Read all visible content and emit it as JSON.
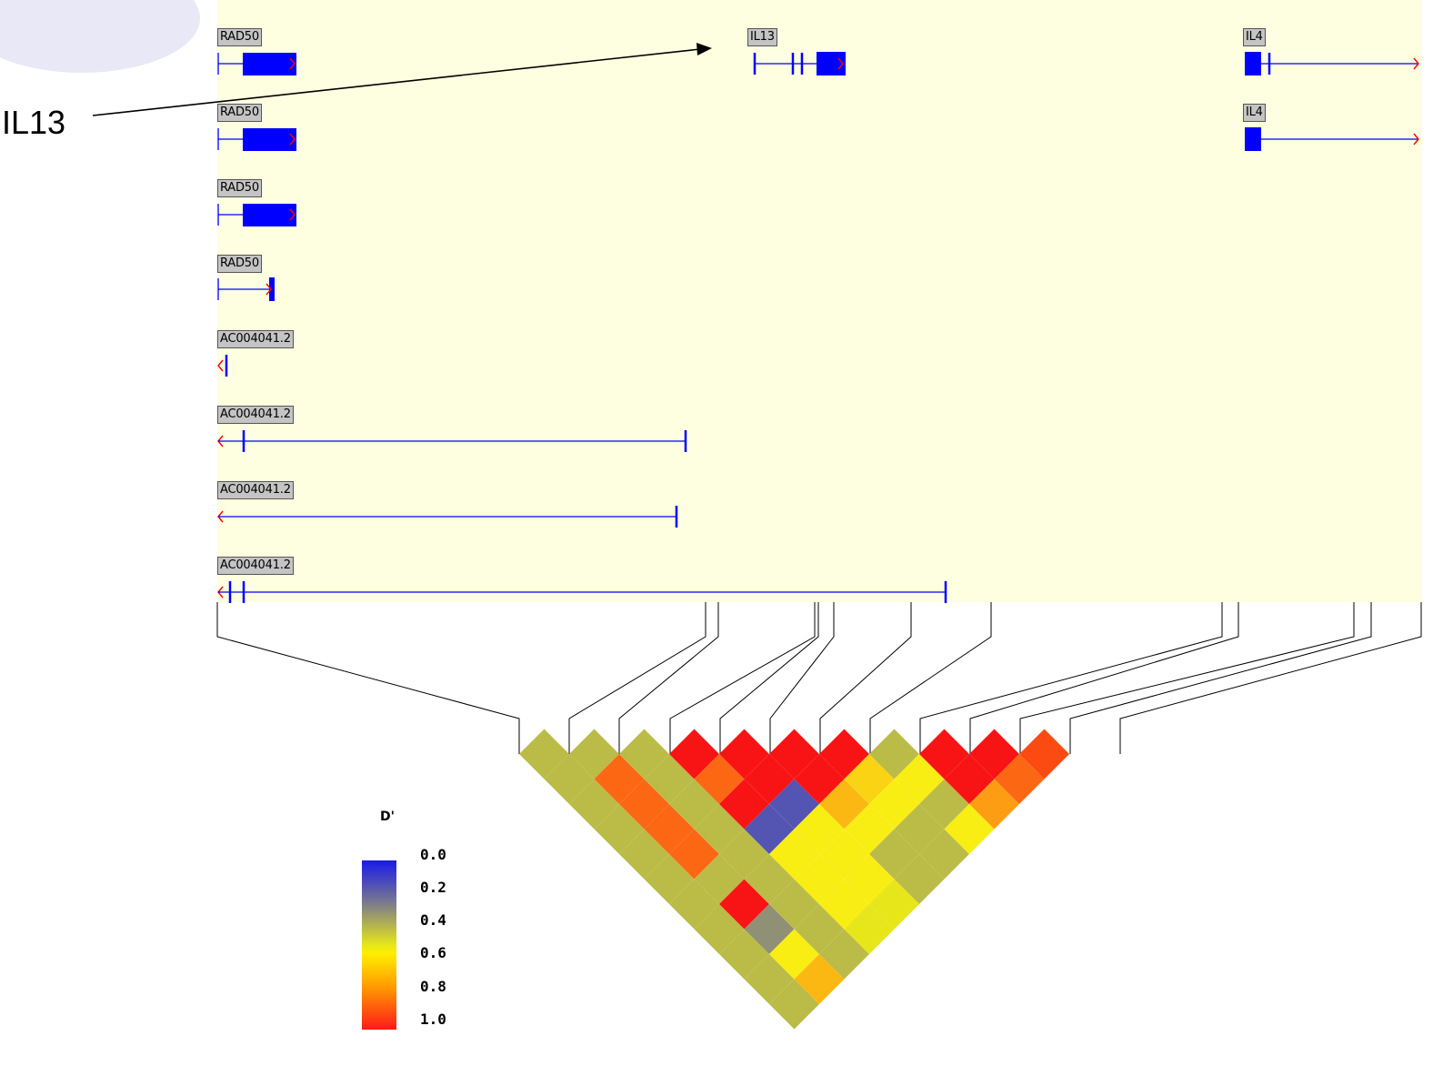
{
  "callout": {
    "label": "IL13",
    "points_to": "IL13 gene"
  },
  "genes": [
    {
      "label": "RAD50",
      "strand": "+"
    },
    {
      "label": "RAD50",
      "strand": "+"
    },
    {
      "label": "RAD50",
      "strand": "+"
    },
    {
      "label": "RAD50",
      "strand": "+"
    },
    {
      "label": "AC004041.2",
      "strand": "-"
    },
    {
      "label": "AC004041.2",
      "strand": "-"
    },
    {
      "label": "AC004041.2",
      "strand": "-"
    },
    {
      "label": "AC004041.2",
      "strand": "-"
    },
    {
      "label": "IL13",
      "strand": "+"
    },
    {
      "label": "IL4",
      "strand": "+"
    },
    {
      "label": "IL4",
      "strand": "+"
    }
  ],
  "legend": {
    "title": "D'",
    "ticks": [
      "0.0",
      "0.2",
      "0.4",
      "0.6",
      "0.8",
      "1.0"
    ],
    "gradient": [
      "#1a1ae8",
      "#7a7a8e",
      "#e6e61a",
      "#ffee00",
      "#ff9900",
      "#ff1a1a"
    ]
  },
  "colors": {
    "panel_background": "#fefee0",
    "exon": "#0000ff",
    "direction_arrow": "#ff0000",
    "grey": "#808080",
    "red": "#f81414",
    "orange": "#fd6a12",
    "yellow": "#f2f21a",
    "olive": "#9a9a70",
    "blue": "#5a5aa0"
  },
  "chart_data": {
    "type": "heatmap",
    "metric": "D'",
    "snp_count": 12,
    "matrix_upper": [
      [
        null,
        0.4,
        0.4,
        0.4,
        0.4,
        0.4,
        0.4,
        0.4,
        0.4,
        0.4,
        0.4,
        0.4
      ],
      [
        null,
        null,
        0.4,
        0.85,
        0.85,
        0.85,
        0.85,
        0.4,
        1.0,
        0.3,
        0.6,
        0.7
      ],
      [
        null,
        null,
        null,
        0.4,
        0.4,
        0.4,
        0.4,
        0.4,
        0.4,
        0.4,
        0.4,
        0.4
      ],
      [
        null,
        null,
        null,
        null,
        1.0,
        0.85,
        1.0,
        0.15,
        0.6,
        0.6,
        0.6,
        0.5
      ],
      [
        null,
        null,
        null,
        null,
        null,
        1.0,
        1.0,
        0.15,
        0.6,
        0.6,
        0.6,
        0.5
      ],
      [
        null,
        null,
        null,
        null,
        null,
        null,
        1.0,
        1.0,
        0.7,
        0.6,
        0.4,
        0.4
      ],
      [
        null,
        null,
        null,
        null,
        null,
        null,
        null,
        1.0,
        0.65,
        0.6,
        0.4,
        0.4
      ],
      [
        null,
        null,
        null,
        null,
        null,
        null,
        null,
        null,
        0.4,
        0.6,
        0.4,
        0.6
      ],
      [
        null,
        null,
        null,
        null,
        null,
        null,
        null,
        null,
        null,
        1.0,
        1.0,
        0.75
      ],
      [
        null,
        null,
        null,
        null,
        null,
        null,
        null,
        null,
        null,
        null,
        1.0,
        0.85
      ],
      [
        null,
        null,
        null,
        null,
        null,
        null,
        null,
        null,
        null,
        null,
        null,
        0.9
      ],
      [
        null,
        null,
        null,
        null,
        null,
        null,
        null,
        null,
        null,
        null,
        null,
        null
      ]
    ]
  }
}
